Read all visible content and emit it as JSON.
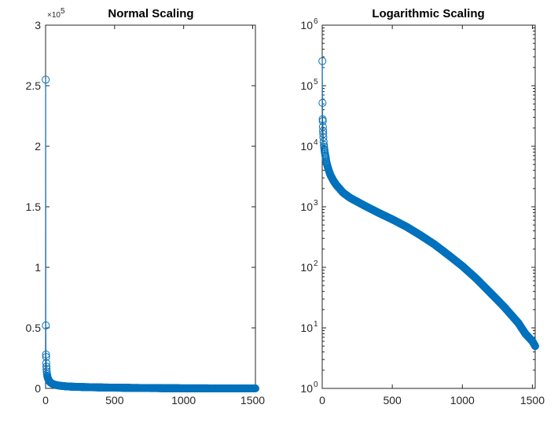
{
  "chart_data": [
    {
      "type": "line",
      "marker": "circle",
      "title": "Normal Scaling",
      "xlabel": "",
      "ylabel": "",
      "xlim": [
        0,
        1520
      ],
      "ylim": [
        0,
        300000
      ],
      "yscale": "linear",
      "x_ticks": [
        0,
        500,
        1000,
        1500
      ],
      "x_tick_labels": [
        "0",
        "500",
        "1000",
        "1500"
      ],
      "y_ticks": [
        0,
        50000,
        100000,
        150000,
        200000,
        250000,
        300000
      ],
      "y_tick_labels": [
        "0",
        "0.5",
        "1",
        "1.5",
        "2",
        "2.5",
        "3"
      ],
      "y_exponent": "×10",
      "y_exponent_power": "5",
      "grid": false,
      "series_color": "#0072bd",
      "series": [
        {
          "x": [
            1,
            2,
            3,
            4,
            5,
            6,
            7,
            8,
            10,
            12,
            15,
            20,
            25,
            30,
            40,
            50,
            60,
            80,
            100,
            150,
            200,
            300,
            400,
            500,
            600,
            700,
            800,
            900,
            1000,
            1100,
            1200,
            1300,
            1400,
            1450,
            1500,
            1520
          ],
          "y": [
            255000,
            52000,
            28000,
            26000,
            21000,
            18000,
            16000,
            14000,
            12000,
            10500,
            9000,
            7500,
            6500,
            5500,
            4500,
            3800,
            3300,
            2700,
            2300,
            1700,
            1400,
            1050,
            800,
            620,
            470,
            340,
            240,
            160,
            105,
            65,
            38,
            22,
            12,
            8,
            6,
            5
          ]
        }
      ]
    },
    {
      "type": "line",
      "marker": "circle",
      "title": "Logarithmic Scaling",
      "xlabel": "",
      "ylabel": "",
      "xlim": [
        0,
        1520
      ],
      "ylim": [
        1,
        1000000
      ],
      "yscale": "log",
      "x_ticks": [
        0,
        500,
        1000,
        1500
      ],
      "x_tick_labels": [
        "0",
        "500",
        "1000",
        "1500"
      ],
      "y_ticks": [
        1,
        10,
        100,
        1000,
        10000,
        100000,
        1000000
      ],
      "y_tick_labels": [
        "10",
        "10",
        "10",
        "10",
        "10",
        "10",
        "10"
      ],
      "y_tick_powers": [
        "0",
        "1",
        "2",
        "3",
        "4",
        "5",
        "6"
      ],
      "grid": false,
      "series_color": "#0072bd",
      "series": [
        {
          "x": [
            1,
            2,
            3,
            4,
            5,
            6,
            7,
            8,
            10,
            12,
            15,
            20,
            25,
            30,
            40,
            50,
            60,
            80,
            100,
            150,
            200,
            300,
            400,
            500,
            600,
            700,
            800,
            900,
            1000,
            1100,
            1200,
            1300,
            1400,
            1450,
            1500,
            1520
          ],
          "y": [
            255000,
            52000,
            28000,
            26000,
            21000,
            18000,
            16000,
            14000,
            12000,
            10500,
            9000,
            7500,
            6500,
            5500,
            4500,
            3800,
            3300,
            2700,
            2300,
            1700,
            1400,
            1050,
            800,
            620,
            470,
            340,
            240,
            160,
            105,
            65,
            38,
            22,
            12,
            8,
            6,
            5
          ]
        }
      ]
    }
  ]
}
